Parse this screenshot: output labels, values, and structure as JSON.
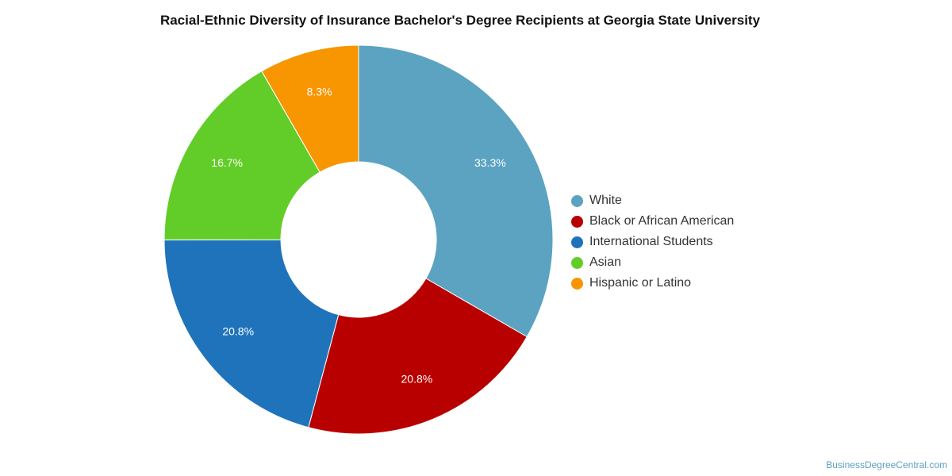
{
  "chart_data": {
    "type": "pie",
    "title": "Racial-Ethnic Diversity of Insurance Bachelor's Degree Recipients at Georgia State University",
    "legend_position": "right",
    "inner_radius_ratio": 0.4,
    "slices": [
      {
        "label": "White",
        "value": 33.3,
        "display": "33.3%",
        "color": "#5ba3c1"
      },
      {
        "label": "Black or African American",
        "value": 20.8,
        "display": "20.8%",
        "color": "#b80000"
      },
      {
        "label": "International Students",
        "value": 20.8,
        "display": "20.8%",
        "color": "#1f73bb"
      },
      {
        "label": "Asian",
        "value": 16.7,
        "display": "16.7%",
        "color": "#62cd29"
      },
      {
        "label": "Hispanic or Latino",
        "value": 8.3,
        "display": "8.3%",
        "color": "#f79600"
      }
    ]
  },
  "footer": {
    "watermark": "BusinessDegreeCentral.com"
  }
}
